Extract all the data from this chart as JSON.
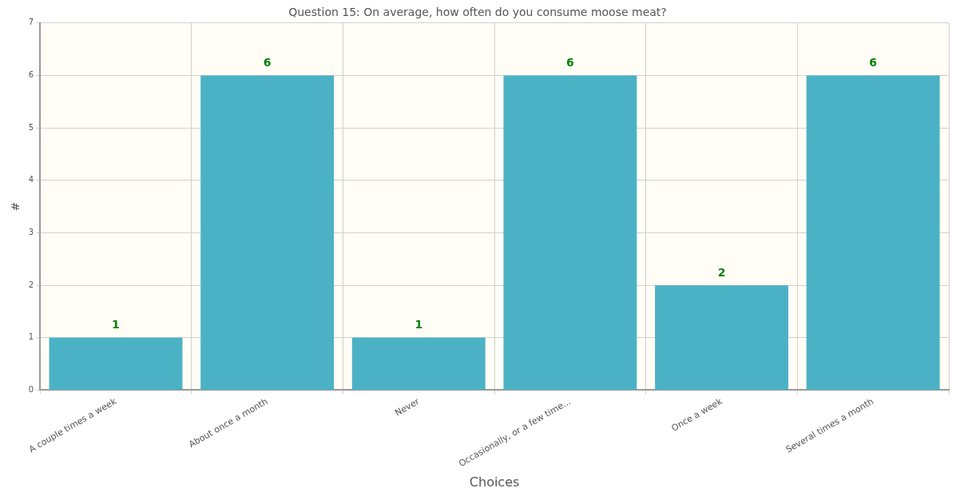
{
  "chart_data": {
    "type": "bar",
    "title": "Question 15: On average, how often do you consume moose meat?",
    "xlabel": "Choices",
    "ylabel": "#",
    "categories": [
      "A couple times a week",
      "About once a month",
      "Never",
      "Occasionally, or a few time...",
      "Once a week",
      "Several times a month"
    ],
    "values": [
      1,
      6,
      1,
      6,
      2,
      6
    ],
    "color": "#4bb2c5",
    "ylim": [
      0,
      7
    ],
    "yticks": [
      0,
      1,
      2,
      3,
      4,
      5,
      6,
      7
    ],
    "grid": true,
    "data_labels": true
  }
}
